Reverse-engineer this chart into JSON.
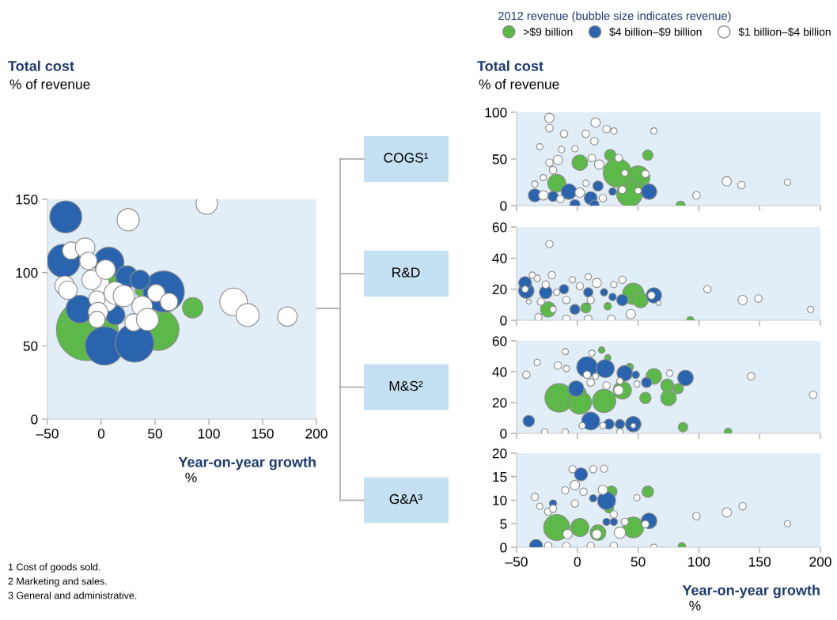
{
  "chart_data": [
    {
      "type": "bubble",
      "title": "Total cost",
      "subtitle": "% of revenue",
      "xlabel": "Year-on-year growth\n%",
      "xlim": [
        -50,
        200
      ],
      "xticks": [
        {
          "value": -50,
          "label": "–50"
        },
        0,
        50,
        100,
        150,
        200
      ],
      "ylim": [
        0,
        150
      ],
      "yticks": [
        0,
        50,
        100,
        150
      ],
      "annotations": [
        "1 Cost of goods sold.",
        "2 Marketing and sales.",
        "3 General and administrative."
      ],
      "series": [
        {
          "color": "#5cb848",
          "x": [
            -13,
            53,
            12,
            85,
            38
          ],
          "values": [
            61,
            61,
            98,
            76,
            88
          ],
          "sizes": [
            1,
            0.45,
            0.1,
            0.11,
            0.05
          ]
        },
        {
          "color": "#2a64ae",
          "x": [
            -33,
            -35,
            3,
            31,
            58,
            7,
            24,
            -20,
            13,
            36
          ],
          "values": [
            138,
            108,
            50,
            52,
            87,
            107,
            97,
            75,
            71,
            95
          ],
          "sizes": [
            0.27,
            0.29,
            0.39,
            0.39,
            0.45,
            0.24,
            0.13,
            0.2,
            0.1,
            0.1
          ]
        },
        {
          "color": "#ffffff",
          "x": [
            25,
            98,
            123,
            136,
            173,
            -28,
            -15,
            -12,
            -34,
            -31,
            -1,
            -9,
            5,
            -4,
            -3,
            51,
            63,
            38,
            30,
            13,
            21,
            -4,
            43,
            4
          ],
          "values": [
            136,
            147,
            80,
            71,
            70,
            115,
            117,
            108,
            91,
            88,
            92,
            95,
            80,
            82,
            73,
            86,
            80,
            77,
            66,
            86,
            84,
            68,
            68,
            102
          ],
          "sizes": [
            0.13,
            0.12,
            0.2,
            0.14,
            0.1,
            0.08,
            0.1,
            0.08,
            0.1,
            0.09,
            0.09,
            0.1,
            0.1,
            0.07,
            0.1,
            0.08,
            0.08,
            0.11,
            0.08,
            0.13,
            0.12,
            0.07,
            0.13,
            0.1
          ]
        }
      ]
    },
    {
      "type": "bubble",
      "title": "Total cost",
      "subtitle": "% of revenue",
      "legend_title": "2012 revenue (bubble size indicates revenue)",
      "legend": "top",
      "annotations": [
        "COGS¹"
      ],
      "tick_labels": "y",
      "xlim": [
        -50,
        200
      ],
      "xticks": [
        -50,
        0,
        50,
        100,
        150,
        200
      ],
      "ylim": [
        0,
        100
      ],
      "yticks": [
        0,
        50,
        100
      ],
      "series": [
        {
          "name": ">$9 billion",
          "color": "#5cb848",
          "x": [
            50,
            -17,
            27,
            58,
            43,
            33,
            85,
            2,
            54
          ],
          "values": [
            30,
            24,
            54,
            54,
            13,
            35,
            0,
            46,
            18
          ],
          "sizes": [
            0.67,
            0.4,
            0.16,
            0.13,
            0.83,
            1,
            0.1,
            0.3,
            0.13
          ]
        },
        {
          "name": "$4 billion–$9 billion",
          "color": "#2a64ae",
          "x": [
            -35,
            59,
            -20,
            -7,
            11,
            29,
            17,
            -2,
            14
          ],
          "values": [
            11,
            15,
            10,
            15,
            8,
            15,
            21,
            1,
            1
          ],
          "sizes": [
            0.21,
            0.3,
            0.13,
            0.3,
            0.21,
            0.07,
            0.13,
            0.13,
            0.11
          ]
        },
        {
          "name": "$1 billion–$4 billion",
          "color": "#ffffff",
          "x": [
            -23,
            -23,
            -31,
            15,
            24,
            7,
            -11,
            30,
            63,
            14,
            -2,
            -13,
            -16,
            -23,
            12,
            34,
            18,
            -20,
            -28,
            -35,
            39,
            56,
            37,
            50,
            -28,
            -14,
            2,
            21,
            7,
            98,
            123,
            135,
            173
          ],
          "values": [
            94,
            83,
            63,
            89,
            82,
            77,
            77,
            80,
            80,
            69,
            61,
            60,
            49,
            46,
            51,
            51,
            44,
            38,
            30,
            23,
            35,
            34,
            17,
            16,
            11,
            7,
            14,
            8,
            24,
            11,
            26,
            22,
            25
          ],
          "sizes": [
            0.11,
            0.07,
            0.05,
            0.11,
            0.07,
            0.07,
            0.07,
            0.05,
            0.05,
            0.07,
            0.05,
            0.05,
            0.11,
            0.07,
            0.07,
            0.07,
            0.11,
            0.07,
            0.05,
            0.05,
            0.05,
            0.07,
            0.07,
            0.05,
            0.11,
            0.07,
            0.11,
            0.07,
            0.05,
            0.07,
            0.11,
            0.07,
            0.05
          ]
        }
      ]
    },
    {
      "type": "bubble",
      "annotations": [
        "R&D"
      ],
      "tick_labels": "y",
      "xlim": [
        -50,
        200
      ],
      "xticks": [
        -50,
        0,
        50,
        100,
        150,
        200
      ],
      "ylim": [
        0,
        60
      ],
      "yticks": [
        0,
        20,
        40,
        60
      ],
      "series": [
        {
          "color": "#5cb848",
          "x": [
            46,
            52,
            -24,
            7,
            25,
            93
          ],
          "values": [
            17,
            13,
            7,
            8,
            9,
            0
          ],
          "sizes": [
            1,
            0.52,
            0.52,
            0.22,
            0.12,
            0.12
          ]
        },
        {
          "color": "#2a64ae",
          "x": [
            -42,
            -43,
            -26,
            63,
            -11,
            9,
            22,
            37,
            -2,
            29
          ],
          "values": [
            19,
            24,
            18,
            16,
            20,
            18,
            18,
            13,
            7,
            15
          ],
          "sizes": [
            0.52,
            0.36,
            0.36,
            0.52,
            0.19,
            0.19,
            0.12,
            0.28,
            0.22,
            0.12
          ]
        },
        {
          "color": "#ffffff",
          "x": [
            -23,
            -37,
            -21,
            -33,
            -43,
            -26,
            -4,
            9,
            37,
            16,
            30,
            2,
            -17,
            -30,
            -20,
            -9,
            11,
            61,
            67,
            -40,
            44,
            -32,
            -9,
            9,
            28,
            107,
            136,
            149,
            192
          ],
          "values": [
            49,
            29,
            29,
            27,
            20,
            23,
            26,
            28,
            26,
            24,
            23,
            22,
            18,
            12,
            7,
            13,
            13,
            16,
            11,
            12,
            4,
            2,
            1,
            1,
            1,
            20,
            13,
            14,
            7
          ],
          "sizes": [
            0.12,
            0.09,
            0.12,
            0.09,
            0.09,
            0.12,
            0.09,
            0.09,
            0.12,
            0.19,
            0.09,
            0.12,
            0.09,
            0.12,
            0.09,
            0.12,
            0.12,
            0.12,
            0.05,
            0.05,
            0.19,
            0.12,
            0.12,
            0.12,
            0.12,
            0.12,
            0.19,
            0.12,
            0.09
          ]
        }
      ]
    },
    {
      "type": "bubble",
      "annotations": [
        "M&S²"
      ],
      "tick_labels": "y",
      "xlim": [
        -50,
        200
      ],
      "xticks": [
        -50,
        0,
        50,
        100,
        150,
        200
      ],
      "ylim": [
        0,
        60
      ],
      "yticks": [
        0,
        20,
        40,
        60
      ],
      "series": [
        {
          "color": "#5cb848",
          "x": [
            -15,
            2,
            22,
            63,
            75,
            74,
            56,
            83,
            87,
            124,
            20,
            25,
            43,
            4,
            37
          ],
          "values": [
            23,
            20,
            21,
            37,
            23,
            31,
            23,
            29,
            4,
            1,
            54,
            49,
            43,
            27,
            28
          ],
          "sizes": [
            1,
            0.67,
            0.67,
            0.3,
            0.3,
            0.21,
            0.16,
            0.13,
            0.11,
            0.07,
            0.05,
            0.05,
            0.07,
            0.07,
            0.4
          ]
        },
        {
          "color": "#2a64ae",
          "x": [
            -40,
            8,
            23,
            39,
            57,
            89,
            48,
            -1,
            11,
            26,
            35,
            46
          ],
          "values": [
            8,
            43,
            42,
            39,
            33,
            36,
            38,
            29,
            8,
            6,
            6,
            6
          ],
          "sizes": [
            0.16,
            0.53,
            0.4,
            0.3,
            0.13,
            0.3,
            0.07,
            0.3,
            0.4,
            0.13,
            0.11,
            0.3
          ]
        },
        {
          "color": "#ffffff",
          "x": [
            -42,
            -33,
            -10,
            12,
            -16,
            -9,
            8,
            15,
            11,
            24,
            34,
            35,
            49,
            76,
            143,
            194,
            -27,
            -10,
            4,
            21,
            46,
            35
          ],
          "values": [
            38,
            46,
            53,
            52,
            44,
            42,
            38,
            37,
            33,
            31,
            28,
            34,
            32,
            39,
            37,
            25,
            1,
            1,
            5,
            5,
            5,
            1
          ],
          "sizes": [
            0.07,
            0.05,
            0.05,
            0.05,
            0.07,
            0.05,
            0.07,
            0.05,
            0.07,
            0.07,
            0.11,
            0.05,
            0.05,
            0.05,
            0.07,
            0.07,
            0.05,
            0.05,
            0.05,
            0.05,
            0.03,
            0.05
          ]
        }
      ]
    },
    {
      "type": "bubble",
      "annotations": [
        "G&A³"
      ],
      "xlabel": "Year-on-year growth\n%",
      "xlim": [
        -50,
        200
      ],
      "xticks": [
        {
          "value": -50,
          "label": "–50"
        },
        0,
        50,
        100,
        150,
        200
      ],
      "ylim": [
        0,
        20
      ],
      "yticks": [
        0,
        5,
        10,
        15,
        20
      ],
      "series": [
        {
          "color": "#5cb848",
          "x": [
            -17,
            46,
            28,
            58,
            26,
            2,
            86,
            17
          ],
          "values": [
            4.2,
            4.2,
            11.8,
            11.8,
            8.3,
            4.2,
            0.2,
            3.1
          ],
          "sizes": [
            1,
            0.64,
            0.19,
            0.19,
            0.13,
            0.48,
            0.08,
            0.36
          ]
        },
        {
          "color": "#2a64ae",
          "x": [
            -34,
            59,
            24,
            30,
            3,
            24,
            13,
            -20
          ],
          "values": [
            0.3,
            5.6,
            5.4,
            5.4,
            15.5,
            9.9,
            10.4,
            9.3
          ],
          "sizes": [
            0.25,
            0.36,
            0.08,
            0.08,
            0.25,
            0.48,
            0.08,
            0.08
          ]
        },
        {
          "color": "#ffffff",
          "x": [
            -35,
            -31,
            -4,
            13,
            22,
            -24,
            -20,
            -10,
            -2,
            5,
            21,
            -2,
            30,
            39,
            56,
            -8,
            16,
            35,
            49,
            98,
            123,
            136,
            173,
            -24,
            -9,
            11,
            30,
            63
          ],
          "values": [
            10.7,
            8.7,
            16.6,
            16.6,
            16.7,
            7.6,
            8.2,
            12.1,
            13.2,
            11.8,
            12.2,
            9.3,
            7,
            5.4,
            4.9,
            2.8,
            2.8,
            3.1,
            10.5,
            6.6,
            7.4,
            8.7,
            5,
            0.3,
            0.3,
            0.3,
            0.3,
            0
          ],
          "sizes": [
            0.08,
            0.06,
            0.08,
            0.08,
            0.08,
            0.08,
            0.08,
            0.08,
            0.13,
            0.08,
            0.13,
            0.08,
            0.08,
            0.08,
            0.08,
            0.13,
            0.13,
            0.19,
            0.06,
            0.08,
            0.13,
            0.08,
            0.06,
            0.08,
            0.08,
            0.08,
            0.08,
            0.06
          ]
        }
      ]
    }
  ]
}
